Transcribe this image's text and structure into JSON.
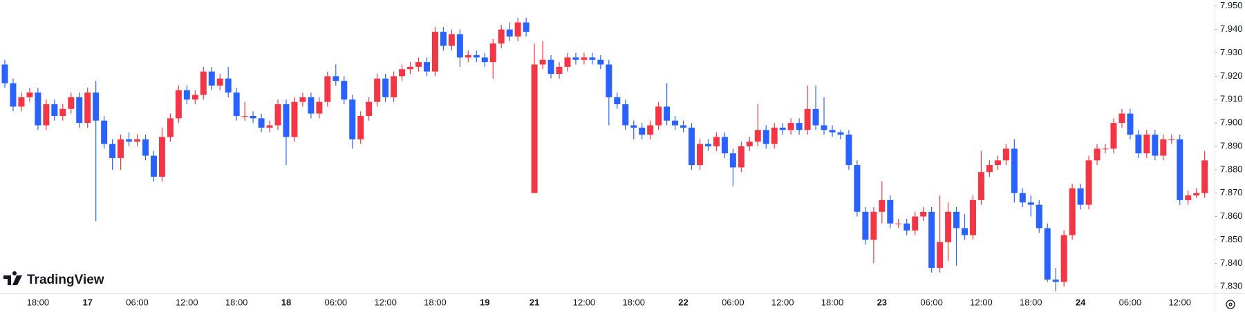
{
  "chart_data": {
    "type": "candlestick",
    "watermark": "TradingView",
    "categories": [
      null,
      null,
      null,
      null,
      "18:00",
      null,
      null,
      null,
      null,
      null,
      "17",
      null,
      null,
      null,
      null,
      null,
      "06:00",
      null,
      null,
      null,
      null,
      null,
      "12:00",
      null,
      null,
      null,
      null,
      null,
      "18:00",
      null,
      null,
      null,
      null,
      null,
      "18",
      null,
      null,
      null,
      null,
      null,
      "06:00",
      null,
      null,
      null,
      null,
      null,
      "12:00",
      null,
      null,
      null,
      null,
      null,
      "18:00",
      null,
      null,
      null,
      null,
      null,
      "19",
      null,
      null,
      null,
      null,
      null,
      "21",
      null,
      null,
      null,
      null,
      null,
      "12:00",
      null,
      null,
      null,
      null,
      null,
      "18:00",
      null,
      null,
      null,
      null,
      null,
      "22",
      null,
      null,
      null,
      null,
      null,
      "06:00",
      null,
      null,
      null,
      null,
      null,
      "12:00",
      null,
      null,
      null,
      null,
      null,
      "18:00",
      null,
      null,
      null,
      null,
      null,
      "23",
      null,
      null,
      null,
      null,
      null,
      "06:00",
      null,
      null,
      null,
      null,
      null,
      "12:00",
      null,
      null,
      null,
      null,
      null,
      "18:00",
      null,
      null,
      null,
      null,
      null,
      "24",
      null,
      null,
      null,
      null,
      null,
      "06:00",
      null,
      null,
      null,
      null,
      null,
      "12:00",
      null,
      null,
      null
    ],
    "series": [
      {
        "up_color": "#f23645",
        "down_color": "#2962ff",
        "open": [
          7.925,
          7.917,
          7.907,
          7.911,
          7.913,
          7.899,
          7.908,
          7.903,
          7.906,
          7.911,
          7.9,
          7.913,
          7.901,
          7.891,
          7.885,
          7.893,
          7.892,
          7.893,
          7.886,
          7.877,
          7.894,
          7.902,
          7.914,
          7.91,
          7.912,
          7.922,
          7.916,
          7.919,
          7.913,
          7.903,
          7.903,
          7.902,
          7.898,
          7.899,
          7.908,
          7.894,
          7.909,
          7.911,
          7.904,
          7.909,
          7.92,
          7.918,
          7.91,
          7.893,
          7.903,
          7.909,
          7.919,
          7.911,
          7.92,
          7.923,
          7.924,
          7.926,
          7.922,
          7.939,
          7.933,
          7.938,
          7.928,
          7.929,
          7.928,
          7.926,
          7.934,
          7.94,
          7.937,
          7.943,
          7.87,
          7.925,
          7.927,
          7.921,
          7.924,
          7.928,
          7.927,
          7.928,
          7.927,
          7.925,
          7.911,
          7.908,
          7.899,
          7.898,
          7.895,
          7.899,
          7.907,
          7.901,
          7.899,
          7.898,
          7.882,
          7.891,
          7.89,
          7.894,
          7.887,
          7.881,
          7.89,
          7.892,
          7.897,
          7.891,
          7.898,
          7.897,
          7.9,
          7.897,
          7.906,
          7.899,
          7.897,
          7.896,
          7.895,
          7.882,
          7.862,
          7.85,
          7.862,
          7.867,
          7.857,
          7.857,
          7.854,
          7.86,
          7.862,
          7.838,
          7.849,
          7.862,
          7.855,
          7.852,
          7.867,
          7.879,
          7.882,
          7.884,
          7.889,
          7.87,
          7.866,
          7.865,
          7.855,
          7.833,
          7.832,
          7.852,
          7.872,
          7.865,
          7.884,
          7.889,
          7.889,
          7.9,
          7.904,
          7.895,
          7.887,
          7.895,
          7.886,
          7.893,
          7.893,
          7.867,
          7.869,
          7.87
        ],
        "high": [
          7.927,
          7.919,
          7.913,
          7.915,
          7.915,
          7.91,
          7.91,
          7.908,
          7.913,
          7.913,
          7.915,
          7.918,
          7.903,
          7.893,
          7.895,
          7.896,
          7.895,
          7.895,
          7.888,
          7.898,
          7.904,
          7.916,
          7.916,
          7.914,
          7.924,
          7.924,
          7.921,
          7.924,
          7.915,
          7.909,
          7.905,
          7.904,
          7.901,
          7.91,
          7.91,
          7.911,
          7.913,
          7.913,
          7.911,
          7.922,
          7.925,
          7.92,
          7.912,
          7.905,
          7.911,
          7.921,
          7.921,
          7.922,
          7.925,
          7.926,
          7.928,
          7.928,
          7.941,
          7.941,
          7.94,
          7.94,
          7.931,
          7.931,
          7.93,
          7.936,
          7.942,
          7.943,
          7.945,
          7.945,
          7.934,
          7.935,
          7.929,
          7.926,
          7.93,
          7.93,
          7.93,
          7.93,
          7.929,
          7.927,
          7.913,
          7.91,
          7.901,
          7.9,
          7.901,
          7.909,
          7.917,
          7.903,
          7.901,
          7.9,
          7.893,
          7.893,
          7.896,
          7.896,
          7.889,
          7.892,
          7.894,
          7.908,
          7.899,
          7.9,
          7.9,
          7.902,
          7.902,
          7.916,
          7.916,
          7.911,
          7.899,
          7.897,
          7.897,
          7.884,
          7.864,
          7.864,
          7.875,
          7.869,
          7.859,
          7.859,
          7.862,
          7.864,
          7.864,
          7.869,
          7.866,
          7.864,
          7.861,
          7.869,
          7.888,
          7.884,
          7.886,
          7.891,
          7.893,
          7.872,
          7.869,
          7.867,
          7.857,
          7.838,
          7.854,
          7.874,
          7.874,
          7.886,
          7.891,
          7.891,
          7.902,
          7.906,
          7.906,
          7.897,
          7.897,
          7.897,
          7.895,
          7.895,
          7.895,
          7.871,
          7.872,
          7.888
        ],
        "low": [
          7.915,
          7.905,
          7.905,
          7.909,
          7.897,
          7.897,
          7.901,
          7.901,
          7.904,
          7.898,
          7.898,
          7.858,
          7.889,
          7.88,
          7.88,
          7.89,
          7.89,
          7.884,
          7.875,
          7.875,
          7.892,
          7.9,
          7.908,
          7.908,
          7.91,
          7.914,
          7.914,
          7.911,
          7.901,
          7.901,
          7.9,
          7.896,
          7.896,
          7.897,
          7.882,
          7.892,
          7.907,
          7.902,
          7.902,
          7.907,
          7.916,
          7.908,
          7.889,
          7.891,
          7.901,
          7.907,
          7.909,
          7.909,
          7.918,
          7.921,
          7.922,
          7.92,
          7.92,
          7.931,
          7.931,
          7.924,
          7.926,
          7.926,
          7.924,
          7.919,
          7.932,
          7.935,
          7.935,
          7.937,
          7.87,
          7.923,
          7.919,
          7.919,
          7.922,
          7.925,
          7.925,
          7.925,
          7.923,
          7.899,
          7.906,
          7.897,
          7.893,
          7.893,
          7.893,
          7.897,
          7.899,
          7.897,
          7.896,
          7.88,
          7.88,
          7.888,
          7.888,
          7.885,
          7.873,
          7.879,
          7.888,
          7.89,
          7.889,
          7.889,
          7.895,
          7.895,
          7.895,
          7.895,
          7.897,
          7.895,
          7.894,
          7.893,
          7.88,
          7.86,
          7.848,
          7.84,
          7.857,
          7.855,
          7.855,
          7.852,
          7.852,
          7.858,
          7.836,
          7.836,
          7.841,
          7.839,
          7.85,
          7.85,
          7.865,
          7.877,
          7.88,
          7.882,
          7.866,
          7.864,
          7.86,
          7.853,
          7.832,
          7.828,
          7.83,
          7.85,
          7.863,
          7.863,
          7.882,
          7.887,
          7.887,
          7.898,
          7.893,
          7.885,
          7.885,
          7.884,
          7.884,
          7.891,
          7.865,
          7.865,
          7.868,
          7.868
        ],
        "close": [
          7.917,
          7.907,
          7.911,
          7.913,
          7.899,
          7.908,
          7.903,
          7.906,
          7.911,
          7.9,
          7.913,
          7.901,
          7.891,
          7.885,
          7.893,
          7.892,
          7.893,
          7.886,
          7.877,
          7.894,
          7.902,
          7.914,
          7.91,
          7.912,
          7.922,
          7.916,
          7.919,
          7.913,
          7.903,
          7.903,
          7.902,
          7.898,
          7.899,
          7.908,
          7.894,
          7.909,
          7.911,
          7.904,
          7.909,
          7.92,
          7.918,
          7.91,
          7.893,
          7.903,
          7.909,
          7.919,
          7.911,
          7.92,
          7.923,
          7.924,
          7.926,
          7.922,
          7.939,
          7.933,
          7.938,
          7.928,
          7.929,
          7.928,
          7.926,
          7.934,
          7.94,
          7.937,
          7.943,
          7.939,
          7.925,
          7.927,
          7.921,
          7.924,
          7.928,
          7.927,
          7.928,
          7.927,
          7.925,
          7.911,
          7.908,
          7.899,
          7.898,
          7.895,
          7.899,
          7.907,
          7.901,
          7.899,
          7.898,
          7.882,
          7.891,
          7.89,
          7.894,
          7.887,
          7.881,
          7.89,
          7.892,
          7.897,
          7.891,
          7.898,
          7.897,
          7.9,
          7.897,
          7.906,
          7.899,
          7.897,
          7.896,
          7.895,
          7.882,
          7.862,
          7.85,
          7.862,
          7.867,
          7.857,
          7.857,
          7.854,
          7.86,
          7.862,
          7.838,
          7.849,
          7.862,
          7.855,
          7.852,
          7.867,
          7.879,
          7.882,
          7.884,
          7.889,
          7.87,
          7.866,
          7.865,
          7.855,
          7.833,
          7.832,
          7.852,
          7.872,
          7.865,
          7.884,
          7.889,
          7.889,
          7.9,
          7.904,
          7.895,
          7.887,
          7.895,
          7.886,
          7.893,
          7.893,
          7.867,
          7.869,
          7.87,
          7.884
        ]
      }
    ],
    "ylim": [
      7.8271,
      7.9526
    ],
    "yticks": [
      {
        "value": 7.83,
        "label": "7.830"
      },
      {
        "value": 7.84,
        "label": "7.840"
      },
      {
        "value": 7.85,
        "label": "7.850"
      },
      {
        "value": 7.86,
        "label": "7.860"
      },
      {
        "value": 7.87,
        "label": "7.870"
      },
      {
        "value": 7.88,
        "label": "7.880"
      },
      {
        "value": 7.89,
        "label": "7.890"
      },
      {
        "value": 7.9,
        "label": "7.900"
      },
      {
        "value": 7.91,
        "label": "7.910"
      },
      {
        "value": 7.92,
        "label": "7.920"
      },
      {
        "value": 7.93,
        "label": "7.930"
      },
      {
        "value": 7.94,
        "label": "7.940"
      },
      {
        "value": 7.95,
        "label": "7.950"
      }
    ],
    "grid": false
  }
}
